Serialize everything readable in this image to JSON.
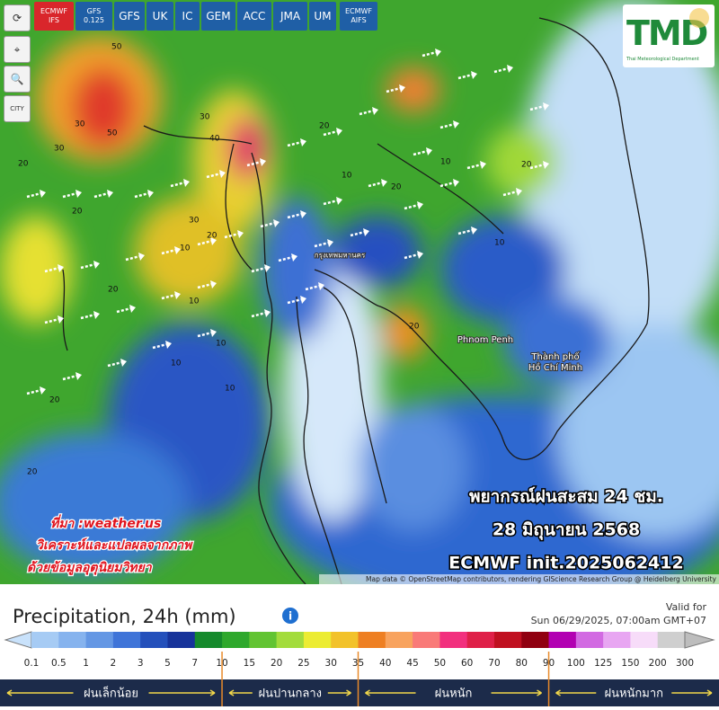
{
  "tabs": [
    "ECMWF IFS",
    "GFS 0.125",
    "GFS",
    "UK",
    "IC",
    "GEM",
    "ACC",
    "JMA",
    "UM",
    "ECMWF AIFS"
  ],
  "side_buttons": [
    "⟳",
    "⌖",
    "🔍",
    "CITY"
  ],
  "logo": {
    "title": "TMD",
    "subtitle": "Thai Meteorological Department"
  },
  "map": {
    "places": [
      "Phnom Penh",
      "Thành phố",
      "Hồ Chí Minh",
      "กรุงเทพมหานคร"
    ],
    "contour_labels": [
      "50",
      "30",
      "50",
      "30",
      "20",
      "30",
      "40",
      "30",
      "20",
      "10",
      "20",
      "20",
      "10",
      "10",
      "20",
      "20",
      "20",
      "20",
      "20",
      "20",
      "10",
      "10",
      "10",
      "10",
      "10"
    ],
    "attribution": "Map data © OpenStreetMap contributors, rendering GIScience Research Group @ Heidelberg University"
  },
  "overlay": {
    "title": "พยากรณ์ฝนสะสม 24 ชม.",
    "date": "28 มิถุนายน 2568",
    "init": "ECMWF init.2025062412"
  },
  "credit": [
    "ที่มา :weather.us",
    "วิเคราะห์และแปลผลจากภาพ",
    "ด้วยข้อมูลอุตุนิยมวิทยา"
  ],
  "legend": {
    "title": "Precipitation, 24h (mm)",
    "valid_label": "Valid for",
    "valid_time": "Sun 06/29/2025, 07:00am GMT+07",
    "labels": [
      "0.1",
      "0.5",
      "1",
      "2",
      "3",
      "5",
      "7",
      "10",
      "15",
      "20",
      "25",
      "30",
      "35",
      "40",
      "45",
      "50",
      "60",
      "70",
      "80",
      "90",
      "100",
      "125",
      "150",
      "200",
      "300"
    ],
    "colors": [
      "#c9e2fb",
      "#a6cbf4",
      "#86b3ee",
      "#6497e4",
      "#3f74d8",
      "#2450bb",
      "#17339a",
      "#158a2c",
      "#2ea82c",
      "#62c432",
      "#a3dc3c",
      "#ecec32",
      "#f2c22a",
      "#ee7f22",
      "#f8a35e",
      "#f97a78",
      "#f2307e",
      "#df2048",
      "#c01020",
      "#900010",
      "#b200b2",
      "#d26ae2",
      "#e8a6f2",
      "#f7dcf9",
      "#cfcfcf",
      "#bdbdbd"
    ],
    "categories": [
      "ฝนเล็กน้อย",
      "ฝนปานกลาง",
      "ฝนหนัก",
      "ฝนหนักมาก"
    ]
  }
}
